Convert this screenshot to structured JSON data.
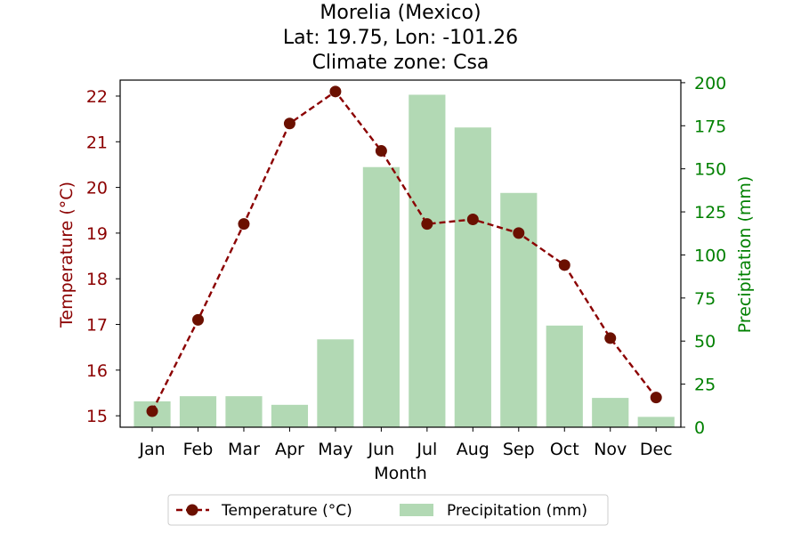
{
  "chart_data": {
    "type": "bar+line",
    "title_lines": [
      "Morelia (Mexico)",
      "Lat: 19.75, Lon: -101.26",
      "Climate zone: Csa"
    ],
    "categories": [
      "Jan",
      "Feb",
      "Mar",
      "Apr",
      "May",
      "Jun",
      "Jul",
      "Aug",
      "Sep",
      "Oct",
      "Nov",
      "Dec"
    ],
    "xlabel": "Month",
    "temperature": {
      "name": "Temperature (°C)",
      "axis_label": "Temperature (°C)",
      "values": [
        15.1,
        17.1,
        19.2,
        21.4,
        22.1,
        20.8,
        19.2,
        19.3,
        19.0,
        18.3,
        16.7,
        15.4
      ],
      "ylim": [
        14.75,
        22.35
      ],
      "ticks": [
        15,
        16,
        17,
        18,
        19,
        20,
        21,
        22
      ],
      "line_color": "#8b0000",
      "marker_color": "#6b1000",
      "tick_color": "#8b0000"
    },
    "precipitation": {
      "name": "Precipitation (mm)",
      "axis_label": "Precipitation (mm)",
      "values": [
        15,
        18,
        18,
        13,
        51,
        151,
        193,
        174,
        136,
        59,
        17,
        6
      ],
      "ylim": [
        0,
        201.5
      ],
      "ticks": [
        0,
        25,
        50,
        75,
        100,
        125,
        150,
        175,
        200
      ],
      "bar_color": "#b2d9b4",
      "tick_color": "#008000"
    },
    "legend": {
      "position": "bottom-center",
      "items": [
        "Temperature (°C)",
        "Precipitation (mm)"
      ]
    }
  }
}
